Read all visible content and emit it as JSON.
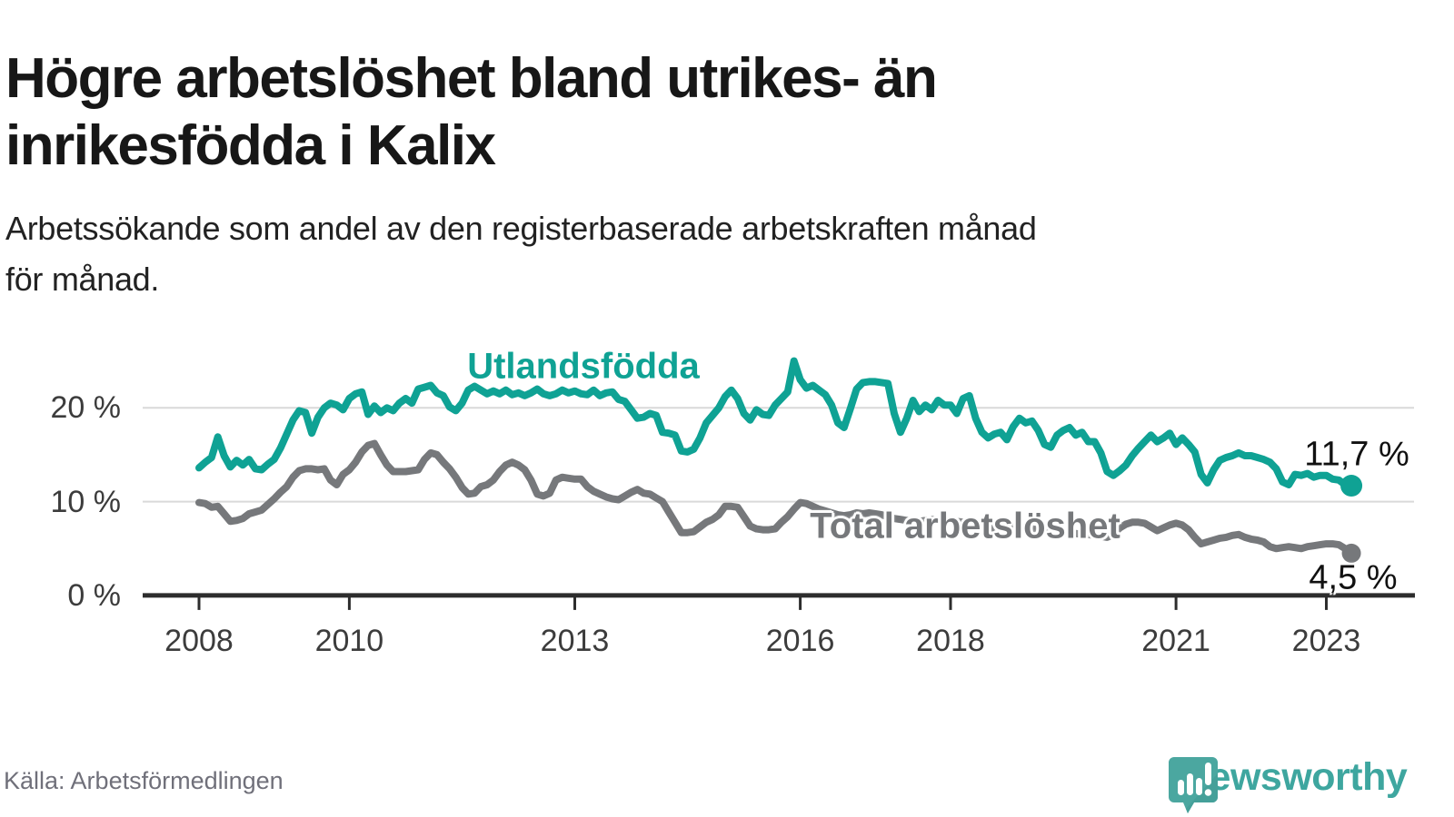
{
  "title": "Högre arbetslöshet bland utrikes- än inrikesfödda i Kalix",
  "title_lines": [
    "Högre arbetslöshet bland utrikes- än",
    "inrikesfödda i Kalix"
  ],
  "subtitle": "Arbetssökande som andel av den registerbaserade arbetskraften månad för månad.",
  "subtitle_lines": [
    "Arbetssökande som andel av den registerbaserade arbetskraften månad",
    "för månad."
  ],
  "source": "Källa: Arbetsförmedlingen",
  "logo": {
    "wordmark": "Newsworthy",
    "icon": "newsworthy-speech-bubble-bar-chart-icon",
    "color": "#3ea69f",
    "mark_color": "#4ba7a0"
  },
  "chart_data": {
    "type": "line",
    "title": "Högre arbetslöshet bland utrikes- än inrikesfödda i Kalix",
    "x_unit": "month",
    "x_start": "2008-01",
    "x_end": "2023-05",
    "ylim": [
      0,
      26
    ],
    "grid": "horizontal",
    "gridlines_pct": [
      10,
      20
    ],
    "y_tick_labels": [
      "20 %",
      "10 %",
      "0 %"
    ],
    "x_ticks": [
      {
        "label": "2008",
        "m": 0
      },
      {
        "label": "2010",
        "m": 24
      },
      {
        "label": "2013",
        "m": 60
      },
      {
        "label": "2016",
        "m": 96
      },
      {
        "label": "2018",
        "m": 120
      },
      {
        "label": "2021",
        "m": 156
      },
      {
        "label": "2023",
        "m": 180
      }
    ],
    "legend_position": "inline-labels",
    "series": [
      {
        "name": "Utlandsfödda",
        "color": "#0fa294",
        "end_label": "11,7 %",
        "end_value": 11.7,
        "values": [
          13.6,
          14.2,
          14.7,
          16.9,
          14.9,
          13.7,
          14.4,
          13.9,
          14.5,
          13.5,
          13.4,
          14.0,
          14.5,
          15.7,
          17.2,
          18.7,
          19.7,
          19.5,
          17.3,
          19.0,
          20.0,
          20.5,
          20.3,
          19.8,
          21.0,
          21.5,
          21.7,
          19.3,
          20.2,
          19.5,
          20.0,
          19.7,
          20.5,
          21.0,
          20.5,
          22.0,
          22.2,
          22.4,
          21.6,
          21.3,
          20.1,
          19.7,
          20.5,
          21.9,
          22.3,
          21.9,
          21.5,
          21.8,
          21.5,
          21.9,
          21.4,
          21.6,
          21.3,
          21.6,
          22.0,
          21.5,
          21.3,
          21.5,
          21.9,
          21.6,
          21.8,
          21.5,
          21.4,
          21.9,
          21.3,
          21.6,
          21.7,
          20.9,
          20.7,
          19.8,
          18.9,
          19.0,
          19.4,
          19.2,
          17.4,
          17.3,
          17.1,
          15.4,
          15.3,
          15.6,
          16.8,
          18.4,
          19.2,
          20.0,
          21.2,
          21.9,
          21.0,
          19.4,
          18.7,
          19.8,
          19.3,
          19.2,
          20.3,
          21.0,
          21.7,
          25.0,
          23.0,
          22.1,
          22.4,
          21.9,
          21.4,
          20.3,
          18.4,
          17.9,
          19.9,
          22.0,
          22.7,
          22.8,
          22.8,
          22.7,
          22.6,
          19.4,
          17.4,
          18.9,
          20.8,
          19.6,
          20.3,
          19.8,
          20.8,
          20.3,
          20.3,
          19.4,
          21.0,
          21.3,
          18.9,
          17.4,
          16.8,
          17.2,
          17.4,
          16.6,
          18.0,
          18.9,
          18.4,
          18.6,
          17.6,
          16.1,
          15.8,
          17.1,
          17.6,
          17.9,
          17.1,
          17.4,
          16.4,
          16.4,
          15.2,
          13.2,
          12.8,
          13.3,
          13.9,
          14.9,
          15.7,
          16.4,
          17.1,
          16.4,
          16.8,
          17.3,
          16.1,
          16.8,
          16.1,
          15.3,
          12.9,
          12.0,
          13.4,
          14.4,
          14.7,
          14.9,
          15.2,
          14.9,
          14.9,
          14.7,
          14.5,
          14.2,
          13.5,
          12.1,
          11.8,
          12.9,
          12.8,
          13.0,
          12.6,
          12.8,
          12.8,
          12.4,
          12.3,
          11.8,
          11.7
        ]
      },
      {
        "name": "Total arbetslöshet",
        "color": "#76787b",
        "end_label": "4,5 %",
        "end_value": 4.5,
        "values": [
          9.9,
          9.8,
          9.4,
          9.5,
          8.7,
          7.9,
          8.0,
          8.2,
          8.7,
          8.9,
          9.1,
          9.7,
          10.3,
          11.0,
          11.6,
          12.6,
          13.3,
          13.5,
          13.5,
          13.4,
          13.5,
          12.3,
          11.8,
          12.9,
          13.4,
          14.2,
          15.3,
          16.0,
          16.2,
          15.0,
          13.9,
          13.2,
          13.2,
          13.2,
          13.3,
          13.4,
          14.5,
          15.2,
          15.0,
          14.2,
          13.5,
          12.6,
          11.5,
          10.8,
          10.9,
          11.6,
          11.8,
          12.3,
          13.2,
          13.9,
          14.2,
          13.9,
          13.4,
          12.3,
          10.8,
          10.6,
          10.9,
          12.3,
          12.6,
          12.5,
          12.4,
          12.4,
          11.6,
          11.1,
          10.8,
          10.5,
          10.3,
          10.2,
          10.6,
          11.0,
          11.3,
          10.9,
          10.8,
          10.4,
          10.0,
          8.9,
          7.8,
          6.7,
          6.7,
          6.8,
          7.3,
          7.8,
          8.1,
          8.6,
          9.5,
          9.5,
          9.4,
          8.4,
          7.4,
          7.1,
          7.0,
          7.0,
          7.1,
          7.8,
          8.4,
          9.2,
          9.9,
          9.8,
          9.5,
          9.2,
          9.0,
          8.8,
          8.6,
          8.5,
          8.6,
          8.8,
          8.7,
          8.8,
          8.7,
          8.6,
          8.4,
          8.2,
          8.1,
          8.0,
          7.9,
          7.9,
          8.0,
          8.1,
          8.0,
          8.0,
          8.0,
          7.9,
          7.8,
          7.6,
          7.4,
          7.3,
          7.2,
          7.2,
          7.3,
          7.4,
          7.3,
          7.3,
          7.2,
          7.1,
          7.0,
          6.9,
          6.8,
          6.7,
          6.7,
          6.6,
          6.6,
          6.5,
          6.5,
          6.4,
          6.3,
          6.2,
          6.5,
          7.2,
          7.6,
          7.8,
          7.8,
          7.7,
          7.3,
          6.9,
          7.2,
          7.5,
          7.7,
          7.5,
          7.0,
          6.2,
          5.5,
          5.7,
          5.9,
          6.1,
          6.2,
          6.4,
          6.5,
          6.2,
          6.0,
          5.9,
          5.7,
          5.2,
          5.0,
          5.1,
          5.2,
          5.1,
          5.0,
          5.2,
          5.3,
          5.4,
          5.5,
          5.5,
          5.4,
          5.0,
          4.5
        ]
      }
    ]
  }
}
